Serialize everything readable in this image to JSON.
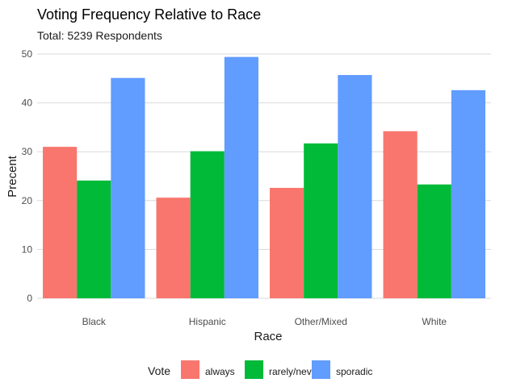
{
  "chart_data": {
    "type": "bar",
    "title": "Voting Frequency Relative to Race",
    "subtitle": "Total: 5239 Respondents",
    "xlabel": "Race",
    "ylabel": "Precent",
    "categories": [
      "Black",
      "Hispanic",
      "Other/Mixed",
      "White"
    ],
    "ylim": [
      0,
      50
    ],
    "yticks": [
      0,
      10,
      20,
      30,
      40,
      50
    ],
    "grid": true,
    "legend": {
      "title": "Vote",
      "position": "bottom"
    },
    "series": [
      {
        "name": "always",
        "color": "#F8766D",
        "values": [
          31.0,
          20.6,
          22.6,
          34.2
        ]
      },
      {
        "name": "rarely/never",
        "color": "#00BA38",
        "values": [
          24.1,
          30.1,
          31.7,
          23.3
        ]
      },
      {
        "name": "sporadic",
        "color": "#619CFF",
        "values": [
          45.1,
          49.4,
          45.7,
          42.6
        ]
      }
    ]
  }
}
